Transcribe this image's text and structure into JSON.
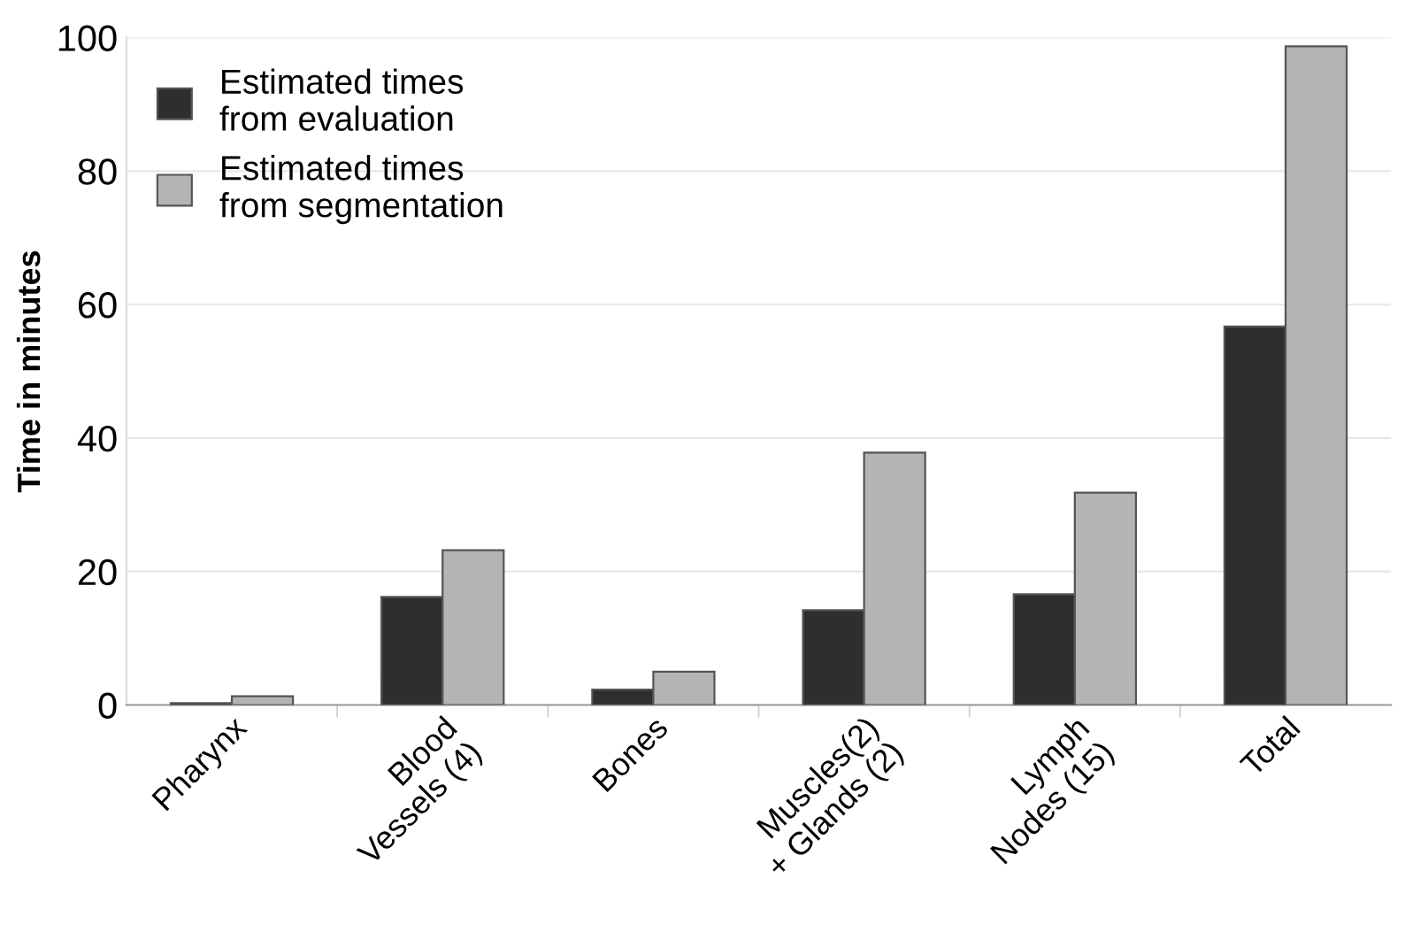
{
  "chart_data": {
    "type": "bar",
    "ylabel": "Time in minutes",
    "categories": [
      "Pharynx",
      "Blood\nVessels (4)",
      "Bones",
      "Muscles(2)\n+ Glands (2)",
      "Lymph\nNodes (15)",
      "Total"
    ],
    "series": [
      {
        "name": "Estimated times\nfrom evaluation",
        "color": "#2e2e2e",
        "values": [
          0.3,
          16.2,
          2.3,
          14.2,
          16.6,
          56.7
        ]
      },
      {
        "name": "Estimated times\nfrom segmentation",
        "color": "#b4b4b4",
        "values": [
          1.3,
          23.2,
          5.0,
          37.8,
          31.8,
          98.7
        ]
      }
    ],
    "ylim": [
      0,
      100
    ],
    "yticks": [
      0,
      20,
      40,
      60,
      80,
      100
    ],
    "grid": "y",
    "legend": "top left"
  }
}
